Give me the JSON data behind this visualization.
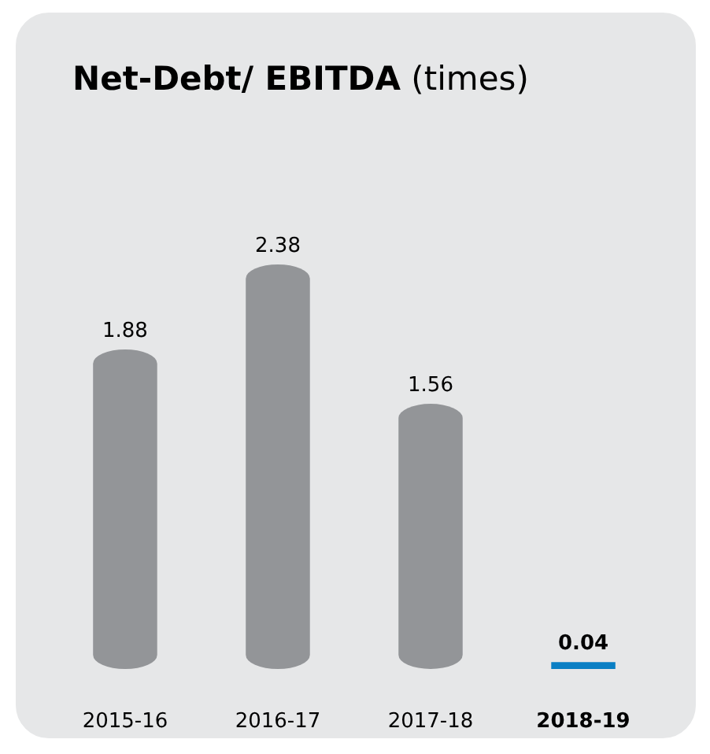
{
  "chart_data": {
    "type": "bar",
    "title": "Net-Debt/ EBITDA (times)",
    "categories": [
      "2015-16",
      "2016-17",
      "2017-18",
      "2018-19"
    ],
    "values": [
      1.88,
      2.38,
      1.56,
      0.04
    ],
    "colors": [
      "#939598",
      "#939598",
      "#939598",
      "#0a7fc4"
    ],
    "data_labels": true
  }
}
